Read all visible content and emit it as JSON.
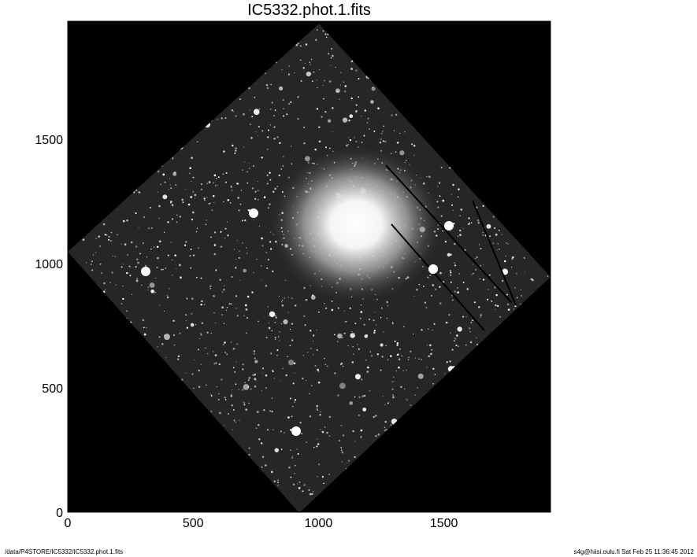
{
  "chart_data": {
    "type": "image",
    "title": "IC5332.phot.1.fits",
    "xlabel": "",
    "ylabel": "",
    "xlim": [
      0,
      1925
    ],
    "ylim": [
      0,
      1975
    ],
    "x_ticks": [
      0,
      500,
      1000,
      1500
    ],
    "y_ticks": [
      0,
      500,
      1000,
      1500
    ],
    "colormap": "grayscale",
    "background_color": "#000000"
  },
  "footer": {
    "path": "/data/P4STORE/IC5332/IC5332.phot.1.fits",
    "stamp": "s4g@hiisi.oulu.fi  Sat Feb 25 11:36:45 2012"
  }
}
